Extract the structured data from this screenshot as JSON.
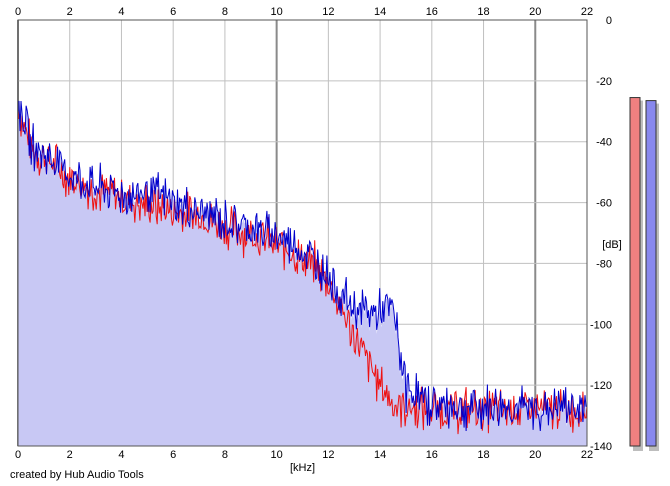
{
  "chart_data": {
    "type": "line",
    "title": "",
    "xlabel": "[kHz]",
    "ylabel": "[dB]",
    "xlim": [
      0,
      22
    ],
    "ylim": [
      -140,
      0
    ],
    "x_ticks": [
      "0",
      "2",
      "4",
      "6",
      "8",
      "10",
      "12",
      "14",
      "16",
      "18",
      "20",
      "22"
    ],
    "y_ticks": [
      "0",
      "-20",
      "-40",
      "-60",
      "-80",
      "-100",
      "-120",
      "-140"
    ],
    "grid": true,
    "colors": {
      "red_series": "#ee1111",
      "blue_series": "#0000cc",
      "area_fill": "#c8c8f4",
      "grid": "#c0c0c0",
      "grid_major": "#8a8a8a"
    },
    "series": [
      {
        "color": "#ee1111",
        "x": [
          0,
          0.5,
          1,
          1.5,
          2,
          2.5,
          3,
          3.5,
          4,
          4.5,
          5,
          5.5,
          6,
          6.5,
          7,
          7.5,
          8,
          8.5,
          9,
          9.5,
          10,
          10.5,
          11,
          11.5,
          12,
          12.5,
          13,
          13.5,
          14,
          14.5,
          15,
          15.5,
          16,
          16.5,
          17,
          17.5,
          18,
          18.5,
          19,
          19.5,
          20,
          20.5,
          21,
          21.5,
          22
        ],
        "values": [
          -28,
          -42,
          -45,
          -48,
          -52,
          -54,
          -56,
          -57,
          -58,
          -60,
          -61,
          -62,
          -63,
          -64,
          -64,
          -66,
          -68,
          -69,
          -70,
          -72,
          -74,
          -76,
          -79,
          -81,
          -86,
          -95,
          -104,
          -112,
          -120,
          -126,
          -127,
          -128,
          -128,
          -128,
          -128,
          -128,
          -128,
          -128,
          -128,
          -128,
          -128,
          -128,
          -128,
          -128,
          -128
        ]
      },
      {
        "color": "#0000cc",
        "x": [
          0,
          0.5,
          1,
          1.5,
          2,
          2.5,
          3,
          3.5,
          4,
          4.5,
          5,
          5.5,
          6,
          6.5,
          7,
          7.5,
          8,
          8.5,
          9,
          9.5,
          10,
          10.5,
          11,
          11.5,
          12,
          12.5,
          13,
          13.5,
          14,
          14.5,
          15,
          15.5,
          16,
          16.5,
          17,
          17.5,
          18,
          18.5,
          19,
          19.5,
          20,
          20.5,
          21,
          21.5,
          22
        ],
        "values": [
          -27,
          -41,
          -44,
          -47,
          -51,
          -53,
          -55,
          -56,
          -57,
          -58,
          -56,
          -58,
          -60,
          -62,
          -63,
          -64,
          -66,
          -67,
          -68,
          -70,
          -71,
          -73,
          -76,
          -79,
          -84,
          -90,
          -95,
          -96,
          -96,
          -95,
          -121,
          -124,
          -126,
          -127,
          -127,
          -127,
          -127,
          -127,
          -127,
          -128,
          -128,
          -128,
          -127,
          -127,
          -127
        ]
      }
    ],
    "level_meters": [
      {
        "color": "#f08080",
        "top_db": -13
      },
      {
        "color": "#8888ee",
        "top_db": -14
      }
    ]
  },
  "footer": {
    "credit": "created by Hub Audio Tools"
  }
}
